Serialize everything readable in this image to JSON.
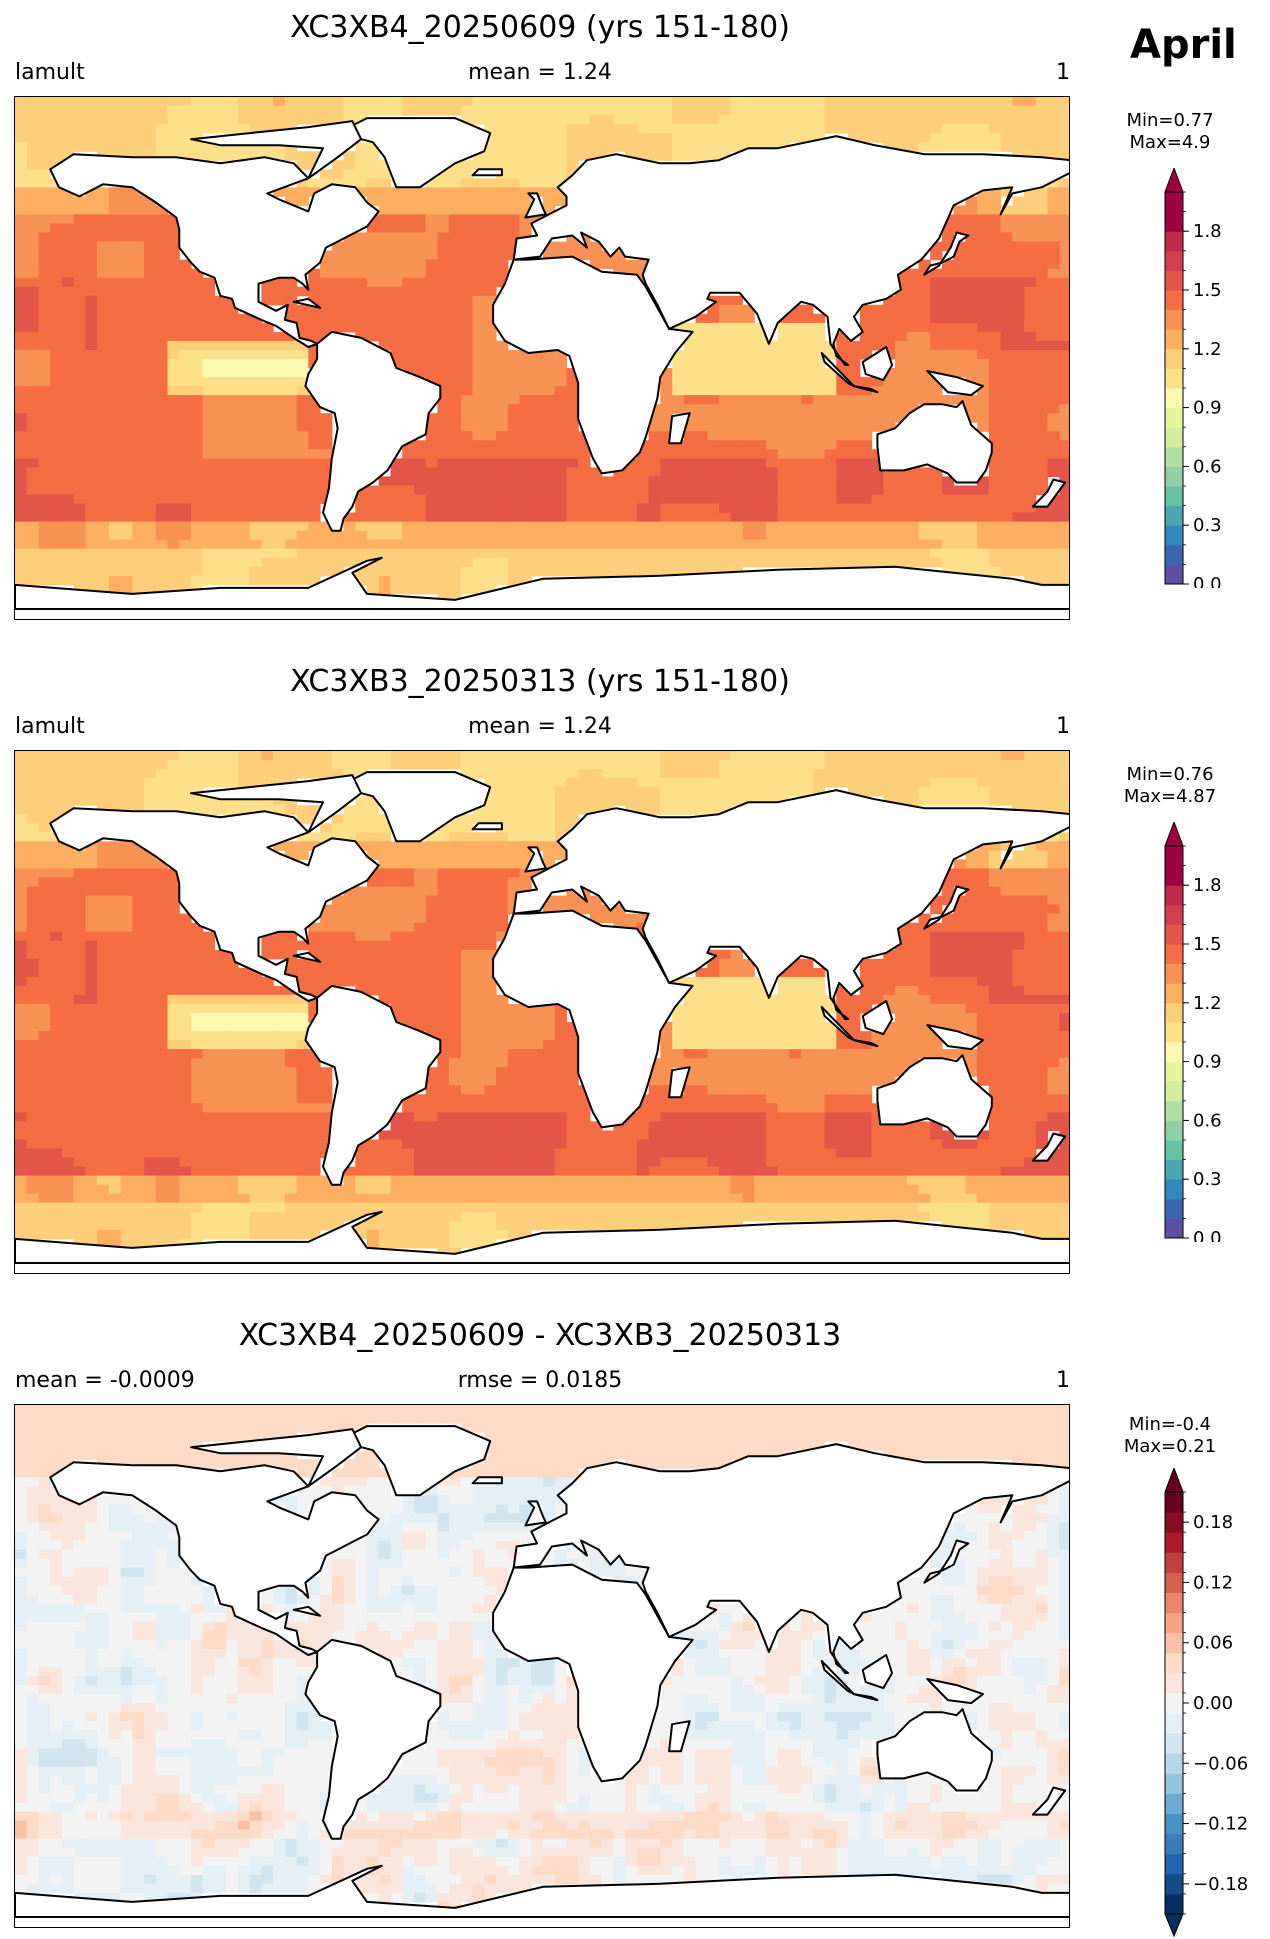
{
  "figure": {
    "month": "April"
  },
  "panels": [
    {
      "title": "XC3XB4_20250609 (yrs 151-180)",
      "label_left": "lamult",
      "label_center": "mean = 1.24",
      "label_right": "1",
      "minmax": [
        "Min=0.77",
        "Max=4.9"
      ]
    },
    {
      "title": "XC3XB3_20250313 (yrs 151-180)",
      "label_left": "lamult",
      "label_center": "mean = 1.24",
      "label_right": "1",
      "minmax": [
        "Min=0.76",
        "Max=4.87"
      ]
    },
    {
      "title": "XC3XB4_20250609 - XC3XB3_20250313",
      "label_left": "mean = -0.0009",
      "label_center": "rmse = 0.0185",
      "label_right": "1",
      "minmax": [
        "Min=-0.4",
        "Max=0.21"
      ]
    }
  ],
  "chart_data": [
    {
      "type": "heatmap",
      "title": "XC3XB4_20250609 (yrs 151-180)",
      "variable": "lamult",
      "units": "1",
      "mean": 1.24,
      "min": 0.77,
      "max": 4.9,
      "colormap": "RdYlBu_r",
      "colorbar_range": [
        0.0,
        2.0
      ],
      "colorbar_levels": 20,
      "colorbar_ticks": [
        "0.0",
        "0.3",
        "0.6",
        "0.9",
        "1.2",
        "1.5",
        "1.8"
      ],
      "colorbar_extend": "max",
      "colors": [
        "#5e4fa2",
        "#3a68ae",
        "#3288bd",
        "#4ca5b1",
        "#66c2a5",
        "#8fd1a4",
        "#b1dfa2",
        "#d4ed9b",
        "#e6f598",
        "#fbf8b0",
        "#fee08b",
        "#fdcf7a",
        "#fdae61",
        "#f89254",
        "#f46d43",
        "#e45549",
        "#d53e4f",
        "#c2294a",
        "#9e0142",
        "#9e0142"
      ]
    },
    {
      "type": "heatmap",
      "title": "XC3XB3_20250313 (yrs 151-180)",
      "variable": "lamult",
      "units": "1",
      "mean": 1.24,
      "min": 0.76,
      "max": 4.87,
      "colormap": "RdYlBu_r",
      "colorbar_range": [
        0.0,
        2.0
      ],
      "colorbar_levels": 20,
      "colorbar_ticks": [
        "0.0",
        "0.3",
        "0.6",
        "0.9",
        "1.2",
        "1.5",
        "1.8"
      ],
      "colorbar_extend": "max",
      "colors": [
        "#5e4fa2",
        "#3a68ae",
        "#3288bd",
        "#4ca5b1",
        "#66c2a5",
        "#8fd1a4",
        "#b1dfa2",
        "#d4ed9b",
        "#e6f598",
        "#fbf8b0",
        "#fee08b",
        "#fdcf7a",
        "#fdae61",
        "#f89254",
        "#f46d43",
        "#e45549",
        "#d53e4f",
        "#c2294a",
        "#9e0142",
        "#9e0142"
      ]
    },
    {
      "type": "heatmap",
      "title": "XC3XB4_20250609 - XC3XB3_20250313",
      "units": "1",
      "mean": -0.0009,
      "rmse": 0.0185,
      "min": -0.4,
      "max": 0.21,
      "colormap": "RdBu_r",
      "colorbar_range": [
        -0.21,
        0.21
      ],
      "colorbar_levels": 21,
      "colorbar_ticks": [
        "−0.18",
        "−0.12",
        "−0.06",
        "0.00",
        "0.06",
        "0.12",
        "0.18"
      ],
      "colorbar_extend": "both",
      "colors": [
        "#053061",
        "#134c87",
        "#2166ac",
        "#3a7eb8",
        "#4393c3",
        "#6eaad0",
        "#92c5de",
        "#b6d7e8",
        "#d1e5f0",
        "#e4eef5",
        "#f2f2f2",
        "#fae5dc",
        "#fddbc7",
        "#f8c1a5",
        "#f4a582",
        "#e8866a",
        "#d6604d",
        "#c3403e",
        "#b2182b",
        "#8a0d24",
        "#67001f"
      ]
    }
  ]
}
